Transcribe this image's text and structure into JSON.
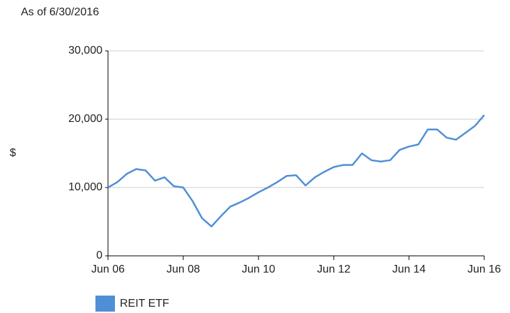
{
  "chart_data": {
    "type": "line",
    "subtitle": "As of 6/30/2016",
    "ylabel": "$",
    "categories": [
      "Jun 06",
      null,
      null,
      null,
      null,
      null,
      null,
      null,
      "Jun 08",
      null,
      null,
      null,
      null,
      null,
      null,
      null,
      "Jun 10",
      null,
      null,
      null,
      null,
      null,
      null,
      null,
      "Jun 12",
      null,
      null,
      null,
      null,
      null,
      null,
      null,
      "Jun 14",
      null,
      null,
      null,
      null,
      null,
      null,
      null,
      "Jun 16"
    ],
    "series": [
      {
        "name": "REIT ETF",
        "color": "#4f8fd6",
        "values": [
          10000,
          10800,
          12000,
          12700,
          12500,
          11000,
          11500,
          10200,
          10000,
          8000,
          5500,
          4300,
          5800,
          7200,
          7800,
          8500,
          9300,
          10000,
          10800,
          11700,
          11800,
          10300,
          11500,
          12300,
          13000,
          13300,
          13300,
          15000,
          14000,
          13800,
          14000,
          15500,
          16000,
          16300,
          18500,
          18500,
          17300,
          17000,
          18000,
          19000,
          20600
        ]
      }
    ],
    "ylim": [
      0,
      30000
    ],
    "yticks": [
      0,
      {
        "value": 10000,
        "label": "10,000"
      },
      {
        "value": 20000,
        "label": "20,000"
      },
      {
        "value": 30000,
        "label": "30,000"
      }
    ],
    "grid": true,
    "legend": "bottom"
  }
}
